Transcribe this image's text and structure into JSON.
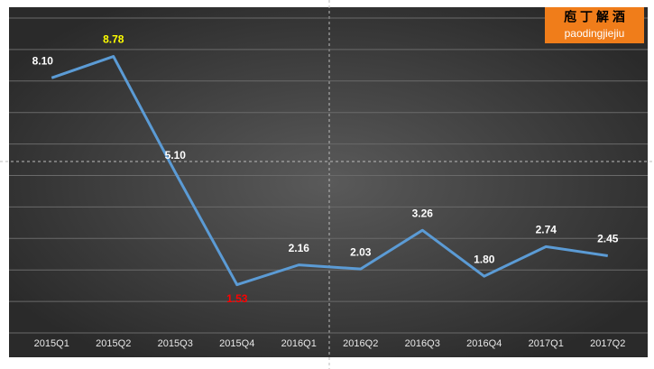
{
  "chart_data": {
    "type": "line",
    "categories": [
      "2015Q1",
      "2015Q2",
      "2015Q3",
      "2015Q4",
      "2016Q1",
      "2016Q2",
      "2016Q3",
      "2016Q4",
      "2017Q1",
      "2017Q2"
    ],
    "values": [
      8.1,
      8.78,
      5.1,
      1.53,
      2.16,
      2.03,
      3.26,
      1.8,
      2.74,
      2.45
    ],
    "value_labels": [
      "8.10",
      "8.78",
      "5.10",
      "1.53",
      "2.16",
      "2.03",
      "3.26",
      "1.80",
      "2.74",
      "2.45"
    ],
    "value_label_colors": [
      "#ffffff",
      "#ffff00",
      "#ffffff",
      "#ff0000",
      "#ffffff",
      "#ffffff",
      "#ffffff",
      "#ffffff",
      "#ffffff",
      "#ffffff"
    ],
    "color": "#5b9bd5",
    "ylim": [
      0,
      10
    ],
    "yticks": [
      0,
      1,
      2,
      3,
      4,
      5,
      6,
      7,
      8,
      9,
      10
    ],
    "grid": true
  },
  "logo": {
    "title": "庖 丁 解 酒",
    "subtitle": "paodingjiejiu"
  }
}
